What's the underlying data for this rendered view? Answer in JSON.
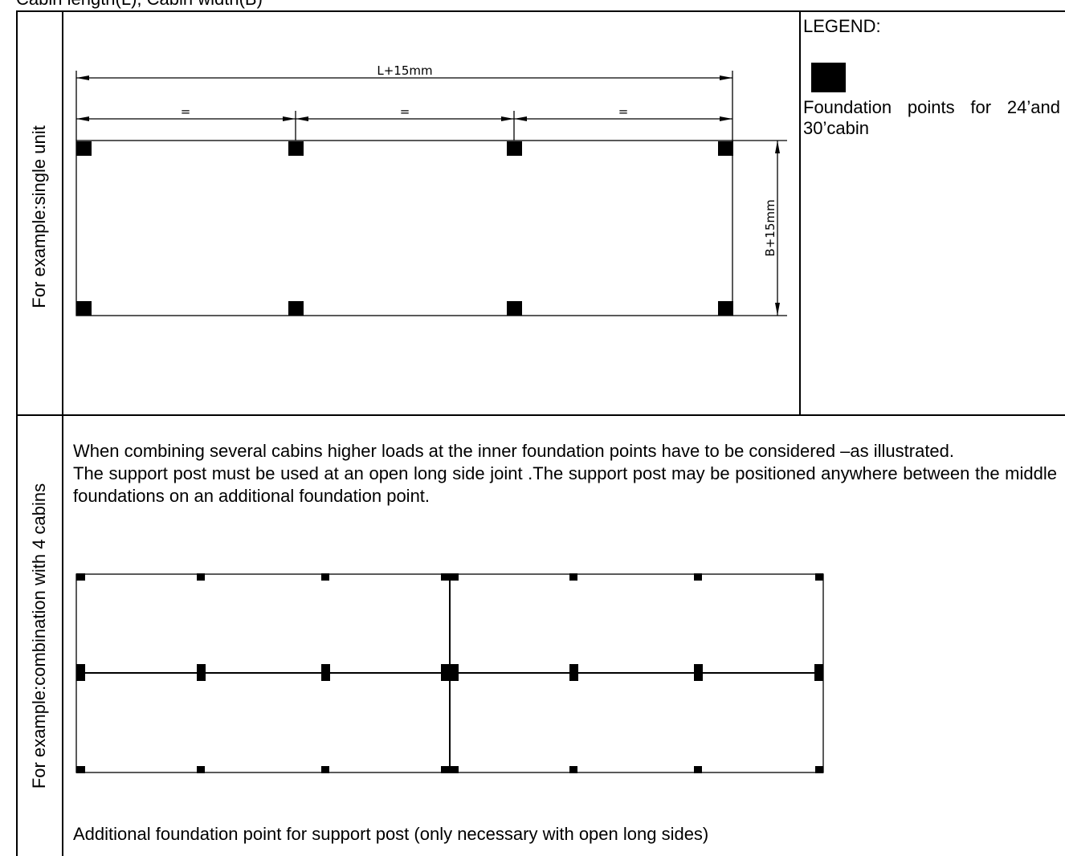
{
  "caption": "Cabin length(L), Cabin width(B)",
  "row1": {
    "side_label": "For example:single unit",
    "dimension_length": "L+15mm",
    "dimension_width": "B+15mm",
    "equal_marks": [
      "=",
      "=",
      "="
    ]
  },
  "legend": {
    "title": "LEGEND:",
    "item_text": "Foundation points for 24’and 30’cabin"
  },
  "row2": {
    "side_label": "For example:combination with 4 cabins",
    "paragraph_1": "When combining several cabins higher loads at the inner foundation points have to be considered –as illustrated.",
    "paragraph_2": "The support post must be used at an open long side joint .The support post may be positioned anywhere between the middle foundations on an additional foundation point.",
    "note": "Additional foundation point for support post (only necessary with open long sides)"
  }
}
